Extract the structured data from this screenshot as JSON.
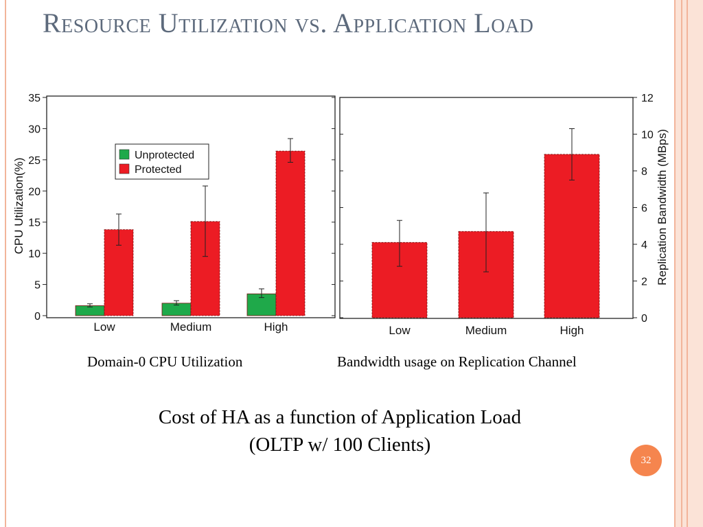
{
  "slide": {
    "title": "Resource Utilization vs. Application Load",
    "subtitle_line1": "Cost of HA as a function of Application Load",
    "subtitle_line2": "(OLTP w/ 100 Clients)",
    "page_number": "32",
    "colors": {
      "unprotected": "#1fa94a",
      "protected": "#ec1c24",
      "title": "#5d6a7c",
      "accent": "#f5854e"
    }
  },
  "chart_data": [
    {
      "type": "bar",
      "caption": "Domain-0 CPU Utilization",
      "categories": [
        "Low",
        "Medium",
        "High"
      ],
      "ylabel": "CPU Utilization(%)",
      "ylim": [
        0,
        35
      ],
      "yticks": [
        0,
        5,
        10,
        15,
        20,
        25,
        30,
        35
      ],
      "legend_position": "upper-middle",
      "series": [
        {
          "name": "Unprotected",
          "color": "#1fa94a",
          "values": [
            1.6,
            2.0,
            3.5
          ],
          "err_low": [
            1.4,
            1.7,
            2.9
          ],
          "err_high": [
            1.9,
            2.4,
            4.3
          ]
        },
        {
          "name": "Protected",
          "color": "#ec1c24",
          "values": [
            13.8,
            15.1,
            26.4
          ],
          "err_low": [
            11.3,
            9.5,
            24.6
          ],
          "err_high": [
            16.3,
            20.8,
            28.4
          ]
        }
      ]
    },
    {
      "type": "bar",
      "caption": "Bandwidth usage on Replication Channel",
      "categories": [
        "Low",
        "Medium",
        "High"
      ],
      "ylabel": "Replication Bandwidth (MBps)",
      "ylim": [
        0,
        12
      ],
      "yticks": [
        0,
        2,
        4,
        6,
        8,
        10,
        12
      ],
      "yaxis_side": "right",
      "series": [
        {
          "color": "#ec1c24",
          "values": [
            4.1,
            4.7,
            8.9
          ],
          "err_low": [
            2.8,
            2.5,
            7.5
          ],
          "err_high": [
            5.3,
            6.8,
            10.3
          ]
        }
      ]
    }
  ]
}
